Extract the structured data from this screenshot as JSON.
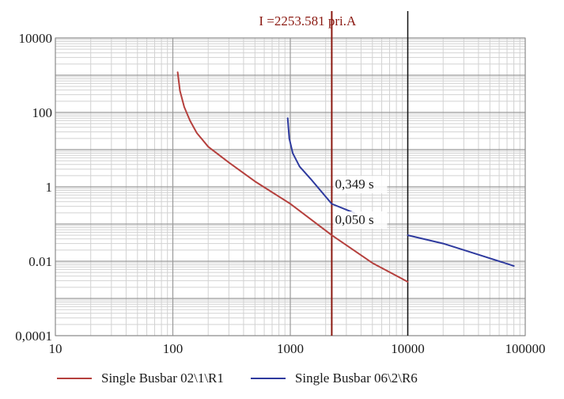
{
  "colors": {
    "red_series": "#b5403d",
    "blue_series": "#2e3a9e",
    "marker_line": "#8b1a12",
    "ref_line": "#111111",
    "grid_major": "#9a9a9a",
    "grid_minor": "#d2d2d2"
  },
  "chart_data": {
    "type": "line",
    "x_scale": "log",
    "y_scale": "log",
    "xlim": [
      10,
      100000
    ],
    "ylim": [
      0.0001,
      10000
    ],
    "grid": true,
    "legend_position": "bottom",
    "x_tick_labels": [
      "10",
      "100",
      "1000",
      "10000",
      "100000"
    ],
    "y_tick_labels": [
      "10000",
      "100",
      "1",
      "0.01",
      "0,0001"
    ],
    "x_ticks": [
      10,
      100,
      1000,
      10000,
      100000
    ],
    "y_ticks": [
      10000,
      100,
      1,
      0.01,
      0.0001
    ],
    "series": [
      {
        "name": "Single Busbar 02\\1\\R1",
        "color": "#b5403d",
        "points": [
          [
            110,
            1200
          ],
          [
            115,
            380
          ],
          [
            125,
            140
          ],
          [
            140,
            60
          ],
          [
            160,
            28
          ],
          [
            200,
            12
          ],
          [
            300,
            4.5
          ],
          [
            500,
            1.4
          ],
          [
            1000,
            0.35
          ],
          [
            2253.581,
            0.05
          ],
          [
            5000,
            0.009
          ],
          [
            10000,
            0.0028
          ]
        ]
      },
      {
        "name": "Single Busbar 06\\2\\R6",
        "color": "#2e3a9e",
        "points": [
          [
            950,
            70
          ],
          [
            980,
            20
          ],
          [
            1050,
            8
          ],
          [
            1200,
            3.5
          ],
          [
            1500,
            1.6
          ],
          [
            2253.581,
            0.349
          ],
          [
            3500,
            0.2
          ]
        ],
        "points_2": [
          [
            10000,
            0.05
          ],
          [
            20000,
            0.03
          ],
          [
            40000,
            0.015
          ],
          [
            80000,
            0.0075
          ]
        ]
      }
    ],
    "vlines": [
      {
        "x": 2253.581,
        "label": "I =2253.581 pri.A",
        "color": "#8b1a12"
      },
      {
        "x": 10000,
        "label": "",
        "color": "#111111"
      }
    ],
    "annotations": [
      {
        "text": "0,349 s",
        "x": 2400,
        "y": 0.9
      },
      {
        "text": "0,050 s",
        "x": 2400,
        "y": 0.1
      }
    ]
  }
}
